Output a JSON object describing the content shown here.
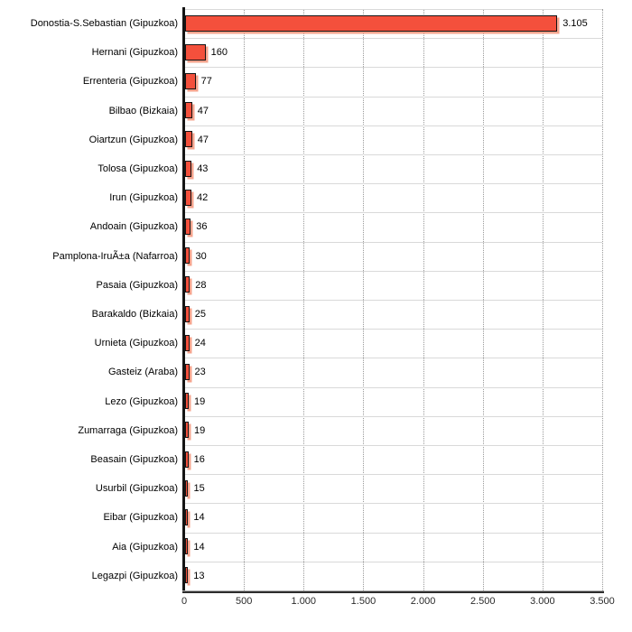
{
  "chart_data": {
    "type": "bar",
    "orientation": "horizontal",
    "title": "",
    "xlabel": "",
    "ylabel": "",
    "categories": [
      "Donostia-S.Sebastian (Gipuzkoa)",
      "Hernani (Gipuzkoa)",
      "Errenteria (Gipuzkoa)",
      "Bilbao (Bizkaia)",
      "Oiartzun (Gipuzkoa)",
      "Tolosa (Gipuzkoa)",
      "Irun (Gipuzkoa)",
      "Andoain (Gipuzkoa)",
      "Pamplona-IruÃ±a (Nafarroa)",
      "Pasaia (Gipuzkoa)",
      "Barakaldo (Bizkaia)",
      "Urnieta (Gipuzkoa)",
      "Gasteiz (Araba)",
      "Lezo (Gipuzkoa)",
      "Zumarraga (Gipuzkoa)",
      "Beasain (Gipuzkoa)",
      "Usurbil (Gipuzkoa)",
      "Eibar (Gipuzkoa)",
      "Aia (Gipuzkoa)",
      "Legazpi (Gipuzkoa)"
    ],
    "values": [
      3105,
      160,
      77,
      47,
      47,
      43,
      42,
      36,
      30,
      28,
      25,
      24,
      23,
      19,
      19,
      16,
      15,
      14,
      14,
      13
    ],
    "value_labels": [
      "3.105",
      "160",
      "77",
      "47",
      "47",
      "43",
      "42",
      "36",
      "30",
      "28",
      "25",
      "24",
      "23",
      "19",
      "19",
      "16",
      "15",
      "14",
      "14",
      "13"
    ],
    "xlim": [
      0,
      3500
    ],
    "x_ticks": [
      0,
      500,
      1000,
      1500,
      2000,
      2500,
      3000,
      3500
    ],
    "x_tick_labels": [
      "0",
      "500",
      "1.000",
      "1.500",
      "2.000",
      "2.500",
      "3.000",
      "3.500"
    ],
    "grid": "vertical-dotted-at-major-ticks",
    "legend": "none",
    "colors": {
      "bar_fill": "#f4503c",
      "bar_border": "#141414",
      "bar_shadow": "#f5a48e",
      "grid_line": "#9a9a9a",
      "row_separator": "#d9d9d9",
      "axis_dark": "#2e2e2e",
      "axis_light": "#ababab",
      "y_axis": "#141414",
      "text": "#000000",
      "background": "#ffffff"
    }
  }
}
